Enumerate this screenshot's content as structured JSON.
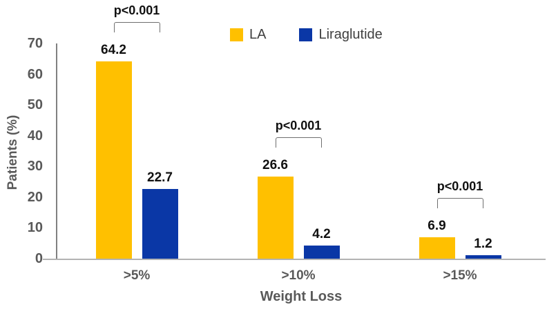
{
  "chart_data": {
    "type": "bar",
    "title": "",
    "categories": [
      ">5%",
      ">10%",
      ">15%"
    ],
    "series": [
      {
        "name": "LA",
        "color": "#FFC000",
        "values": [
          64.2,
          26.6,
          6.9
        ]
      },
      {
        "name": "Liraglutide",
        "color": "#0A37A6",
        "values": [
          22.7,
          4.2,
          1.2
        ]
      }
    ],
    "significance_labels": [
      "p<0.001",
      "p<0.001",
      "p<0.001"
    ],
    "xlabel": "Weight Loss",
    "ylabel": "Patients (%)",
    "ylim": [
      0,
      70
    ],
    "yticks": [
      0,
      10,
      20,
      30,
      40,
      50,
      60,
      70
    ],
    "grid": false,
    "legend_position": "top-center",
    "value_labels_shown": true
  }
}
